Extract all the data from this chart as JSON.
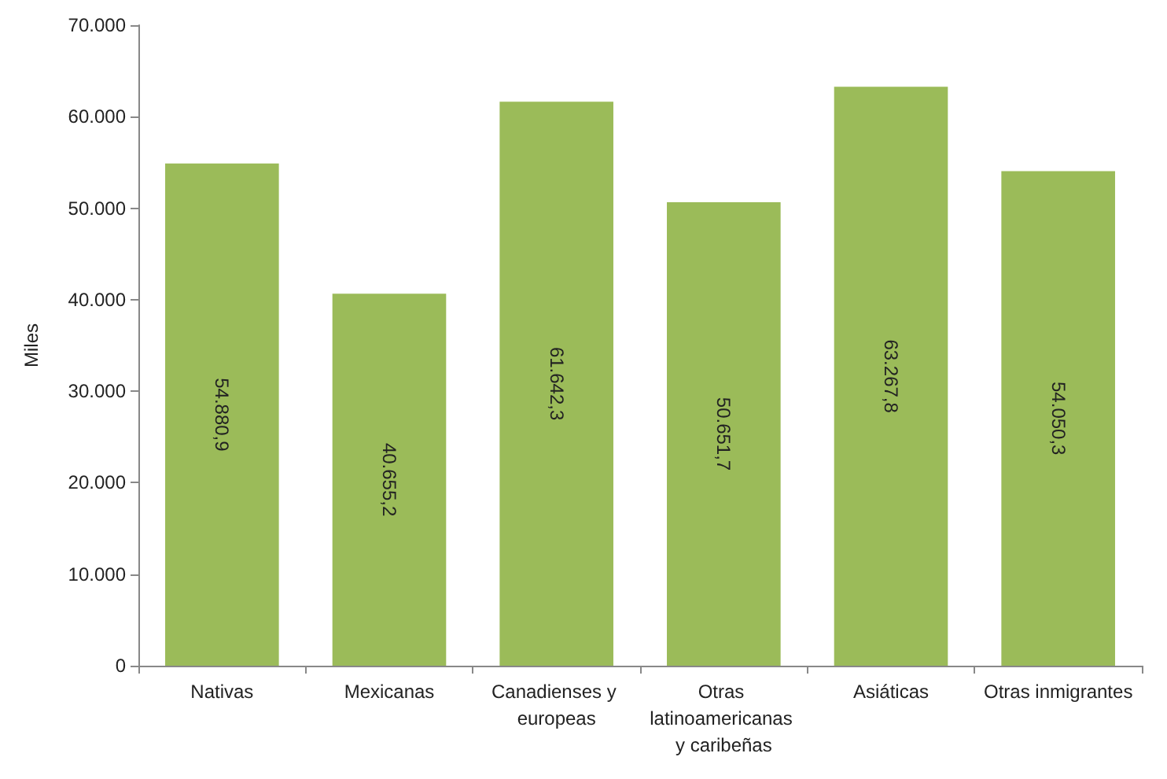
{
  "chart_data": {
    "type": "bar",
    "ylabel": "Miles",
    "categories": [
      "Nativas",
      "Mexicanas",
      "Canadienses y europeas",
      "Otras latinoamericanas y caribeñas",
      "Asiáticas",
      "Otras inmigrantes"
    ],
    "values": [
      54880.9,
      40655.2,
      61642.3,
      50651.7,
      63267.8,
      54050.3
    ],
    "value_labels": [
      "54.880,9",
      "40.655,2",
      "61.642,3",
      "50.651,7",
      "63.267,8",
      "54.050,3"
    ],
    "color": "#9bbb59",
    "ylim": [
      0,
      70000
    ],
    "yticks": [
      0,
      {
        "value": 10000,
        "label": "10.000"
      },
      {
        "value": 20000,
        "label": "20.000"
      },
      {
        "value": 30000,
        "label": "30.000"
      },
      {
        "value": 40000,
        "label": "40.000"
      },
      {
        "value": 50000,
        "label": "50.000"
      },
      {
        "value": 60000,
        "label": "60.000"
      },
      {
        "value": 70000,
        "label": "70.000"
      }
    ],
    "grid": false
  }
}
